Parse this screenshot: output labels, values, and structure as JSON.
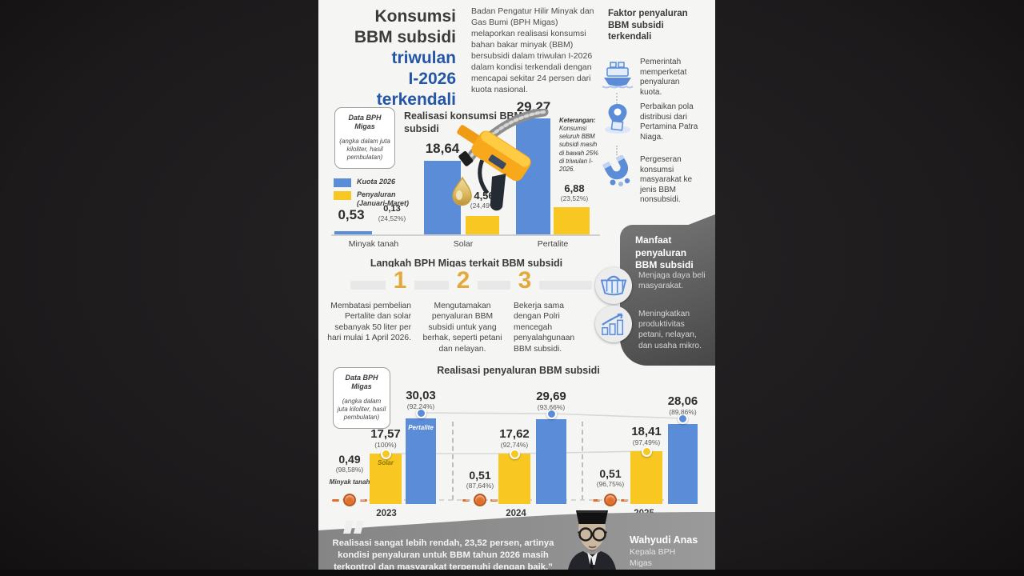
{
  "header": {
    "title_dark": "Konsumsi\nBBM subsidi",
    "title_blue": "triwulan\nI-2026\nterkendali",
    "intro": "Badan Pengatur Hilir Minyak dan Gas Bumi (BPH Migas) melaporkan realisasi konsumsi bahan bakar minyak (BBM) bersubsidi dalam triwulan I-2026 dalam kondisi terkendali dengan mencapai sekitar 24 persen dari kuota nasional."
  },
  "factors": {
    "title": "Faktor penyaluran BBM subsidi terkendali",
    "items": [
      {
        "icon": "ship-icon",
        "text": "Pemerintah memperketat penyaluran kuota."
      },
      {
        "icon": "map-pin-icon",
        "text": "Perbaikan pola distribusi dari Pertamina Patra Niaga."
      },
      {
        "icon": "magnet-icon",
        "text": "Pergeseran konsumsi masyarakat ke jenis BBM nonsubsidi."
      }
    ]
  },
  "data_note": {
    "title": "Data BPH Migas",
    "body": "(angka dalam juta kiloliter, hasil pembulatan)"
  },
  "chart_data": [
    {
      "type": "bar",
      "title": "Realisasi konsumsi BBM subsidi",
      "note_title": "Keterangan:",
      "note": "Konsumsi seluruh BBM subsidi masih di bawah 25% di triwulan I-2026.",
      "categories": [
        "Minyak tanah",
        "Solar",
        "Pertalite"
      ],
      "ylim": [
        0,
        30
      ],
      "grid": false,
      "legend_position": "left",
      "series": [
        {
          "name": "Kuota 2026",
          "color": "#5b8cd8",
          "values": [
            0.53,
            18.64,
            29.27
          ],
          "labels": [
            "0,53",
            "18,64",
            "29,27"
          ]
        },
        {
          "name": "Penyaluran (Januari-Maret)",
          "color": "#f8c722",
          "values": [
            0.13,
            4.56,
            6.88
          ],
          "labels": [
            "0,13",
            "4,56",
            "6,88"
          ],
          "pct": [
            "(24,52%)",
            "(24,49%)",
            "(23,52%)"
          ]
        }
      ]
    },
    {
      "type": "bar",
      "title": "Realisasi penyaluran BBM subsidi",
      "categories": [
        "2023",
        "2024",
        "2025"
      ],
      "ylim": [
        0,
        31
      ],
      "grid": false,
      "series": [
        {
          "name": "Minyak tanah",
          "color": "#e0702e",
          "values": [
            0.49,
            0.51,
            0.51
          ],
          "labels": [
            "0,49",
            "0,51",
            "0,51"
          ],
          "pct": [
            "(98,58%)",
            "(87,64%)",
            "(96,75%)"
          ]
        },
        {
          "name": "Solar",
          "color": "#f8c722",
          "values": [
            17.57,
            17.62,
            18.41
          ],
          "labels": [
            "17,57",
            "17,62",
            "18,41"
          ],
          "pct": [
            "(100%)",
            "(92,74%)",
            "(97,49%)"
          ]
        },
        {
          "name": "Pertalite",
          "color": "#5b8cd8",
          "values": [
            30.03,
            29.69,
            28.06
          ],
          "labels": [
            "30,03",
            "29,69",
            "28,06"
          ],
          "pct": [
            "(92,24%)",
            "(93,66%)",
            "(89,86%)"
          ]
        }
      ]
    }
  ],
  "langkah": {
    "title": "Langkah BPH Migas terkait BBM subsidi",
    "steps": [
      {
        "number": "1",
        "text": "Membatasi pembelian Pertalite dan solar sebanyak 50 liter per hari mulai 1 April 2026."
      },
      {
        "number": "2",
        "text": "Mengutamakan penyaluran BBM subsidi untuk yang berhak, seperti petani dan nelayan."
      },
      {
        "number": "3",
        "text": "Bekerja sama dengan Polri mencegah penyalahgunaan BBM subsidi."
      }
    ]
  },
  "manfaat": {
    "title": "Manfaat penyaluran BBM subsidi",
    "items": [
      {
        "icon": "basket-icon",
        "text": "Menjaga daya beli masyarakat."
      },
      {
        "icon": "growth-icon",
        "text": "Meningkatkan produktivitas petani, nelayan, dan usaha mikro."
      }
    ]
  },
  "quote": {
    "text": "Realisasi sangat lebih rendah, 23,52 persen, artinya kondisi penyaluran untuk BBM tahun 2026 masih terkontrol dan masyarakat terpenuhi dengan baik.”",
    "name": "Wahyudi Anas",
    "role": "Kepala BPH Migas"
  },
  "colors": {
    "accent_blue": "#5b8cd8",
    "accent_yellow": "#f8c722",
    "accent_orange": "#e0702e",
    "gold_number": "#e2a93d",
    "title_blue": "#2356a6"
  }
}
